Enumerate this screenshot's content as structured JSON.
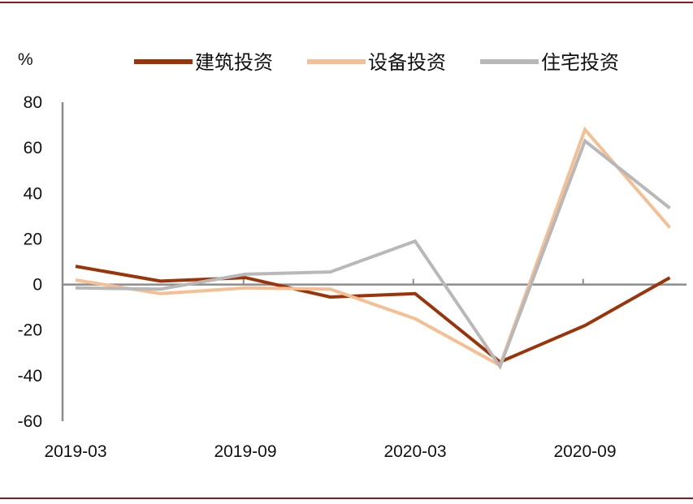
{
  "chart_data": {
    "type": "line",
    "title": "",
    "unit": "%",
    "xlabel": "",
    "ylabel": "%",
    "ylim": [
      -60,
      80
    ],
    "yticks": [
      80,
      60,
      40,
      20,
      0,
      -20,
      -40,
      -60
    ],
    "x": [
      "2019-03",
      "2019-06",
      "2019-09",
      "2019-12",
      "2020-03",
      "2020-06",
      "2020-09",
      "2020-12"
    ],
    "xtick_labels": [
      "2019-03",
      "2019-09",
      "2020-03",
      "2020-09"
    ],
    "grid": false,
    "legend_position": "top",
    "series": [
      {
        "name": "建筑投资",
        "color": "#9b3409",
        "values": [
          8,
          1.5,
          3,
          -5.5,
          -4,
          -34,
          -18,
          3
        ]
      },
      {
        "name": "设备投资",
        "color": "#f6bf93",
        "values": [
          2,
          -4,
          -1.5,
          -2,
          -15,
          -35.5,
          68,
          25
        ]
      },
      {
        "name": "住宅投资",
        "color": "#b8b8b8",
        "values": [
          -1.5,
          -2,
          4.5,
          5.5,
          19,
          -36,
          63,
          33.5
        ]
      }
    ]
  }
}
